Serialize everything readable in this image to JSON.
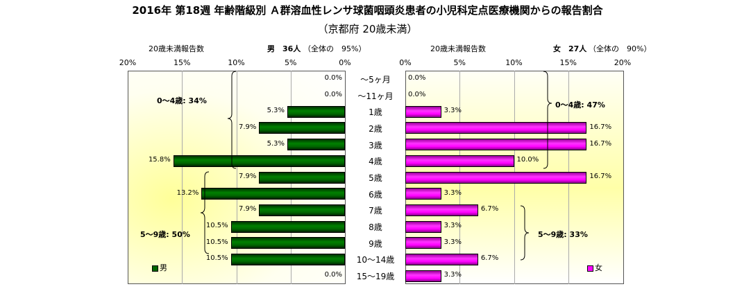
{
  "chart_data": {
    "type": "bar",
    "orientation": "horizontal-butterfly",
    "title": "2016年 第18週 年齢階級別 Ａ群溶血性レンサ球菌咽頭炎患者の小児科定点医療機関からの報告割合",
    "subtitle": "（京都府 20歳未満）",
    "categories": [
      "～5ヶ月",
      "～11ヶ月",
      "1歳",
      "2歳",
      "3歳",
      "4歳",
      "5歳",
      "6歳",
      "7歳",
      "8歳",
      "9歳",
      "10～14歳",
      "15～19歳"
    ],
    "left": {
      "header_label": "20歳未満報告数",
      "header_count": "男　36人",
      "header_share": "（全体の　95%）",
      "ticks": [
        "20%",
        "15%",
        "10%",
        "5%",
        "0%"
      ],
      "xlim": [
        0,
        20
      ],
      "series": {
        "name": "男",
        "color": "#006600",
        "values": [
          0.0,
          0.0,
          5.3,
          7.9,
          5.3,
          15.8,
          7.9,
          13.2,
          7.9,
          10.5,
          10.5,
          10.5,
          0.0
        ]
      },
      "annotations": [
        "0～4歳: 34%",
        "5～9歳: 50%"
      ]
    },
    "right": {
      "header_label": "20歳未満報告数",
      "header_count": "女　27人",
      "header_share": "（全体の　90%）",
      "ticks": [
        "0%",
        "5%",
        "10%",
        "15%",
        "20%"
      ],
      "xlim": [
        0,
        20
      ],
      "series": {
        "name": "女",
        "color": "#ff00ff",
        "values": [
          0.0,
          0.0,
          3.3,
          16.7,
          16.7,
          10.0,
          16.7,
          3.3,
          6.7,
          3.3,
          3.3,
          6.7,
          3.3
        ]
      },
      "annotations": [
        "0～4歳: 47%",
        "5～9歳: 33%"
      ]
    },
    "grid": true,
    "legend": "bottom-left / bottom-right"
  }
}
